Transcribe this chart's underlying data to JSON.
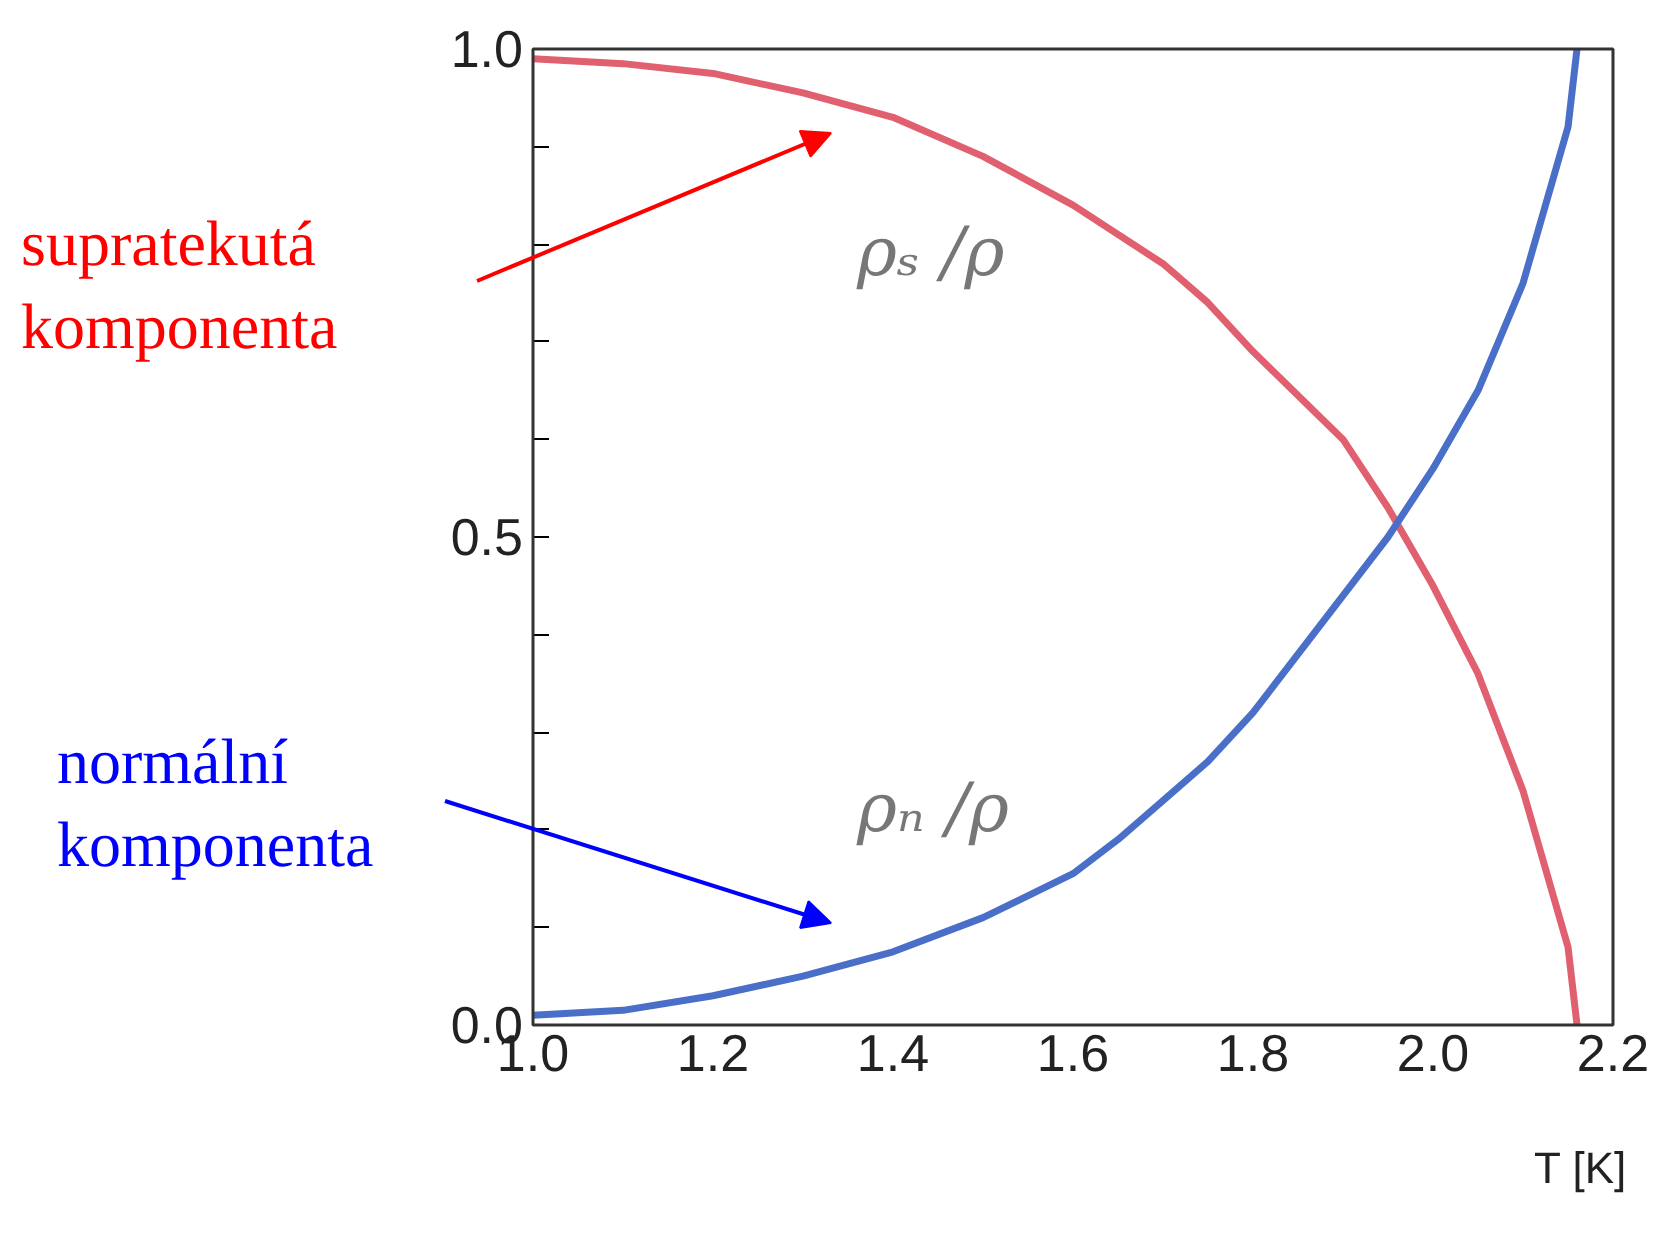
{
  "chart_data": {
    "type": "line",
    "xlabel": "T [K]",
    "xlim": [
      1.0,
      2.2
    ],
    "ylim": [
      0.0,
      1.0
    ],
    "xticks": [
      {
        "value": 1,
        "label": "1.0"
      },
      {
        "value": 1.2,
        "label": "1.2"
      },
      {
        "value": 1.4,
        "label": "1.4"
      },
      {
        "value": 1.6,
        "label": "1.6"
      },
      {
        "value": 1.8,
        "label": "1.8"
      },
      {
        "value": 2,
        "label": "2.0"
      },
      {
        "value": 2.2,
        "label": "2.2"
      }
    ],
    "yticks": [
      {
        "value": 0,
        "label": "0.0"
      },
      {
        "value": 0.1,
        "label": null
      },
      {
        "value": 0.2,
        "label": null
      },
      {
        "value": 0.3,
        "label": null
      },
      {
        "value": 0.4,
        "label": null
      },
      {
        "value": 0.5,
        "label": "0.5"
      },
      {
        "value": 0.6,
        "label": null
      },
      {
        "value": 0.7,
        "label": null
      },
      {
        "value": 0.8,
        "label": null
      },
      {
        "value": 0.9,
        "label": null
      },
      {
        "value": 1,
        "label": "1.0"
      }
    ],
    "grid": false,
    "marker": "none",
    "line_style": "solid",
    "series": [
      {
        "color": "#e06070",
        "x": [
          1.0,
          1.1,
          1.2,
          1.3,
          1.4,
          1.5,
          1.6,
          1.7,
          1.75,
          1.8,
          1.9,
          1.95,
          2.0,
          2.05,
          2.1,
          2.15,
          2.16
        ],
        "values": [
          0.99,
          0.985,
          0.975,
          0.955,
          0.93,
          0.89,
          0.84,
          0.78,
          0.74,
          0.69,
          0.6,
          0.53,
          0.45,
          0.36,
          0.24,
          0.08,
          0.0
        ]
      },
      {
        "color": "#4a6fc8",
        "x": [
          1.0,
          1.1,
          1.2,
          1.3,
          1.4,
          1.5,
          1.6,
          1.65,
          1.7,
          1.75,
          1.8,
          1.85,
          1.9,
          1.95,
          2.0,
          2.05,
          2.1,
          2.15,
          2.16
        ],
        "values": [
          0.01,
          0.015,
          0.03,
          0.05,
          0.075,
          0.11,
          0.155,
          0.19,
          0.23,
          0.27,
          0.32,
          0.38,
          0.44,
          0.5,
          0.57,
          0.65,
          0.76,
          0.92,
          1.0
        ]
      }
    ],
    "annotations": [
      "supratekutá\nkomponenta",
      "normální\nkomponenta",
      "ρₛ /ρ",
      "ρₙ /ρ"
    ]
  }
}
